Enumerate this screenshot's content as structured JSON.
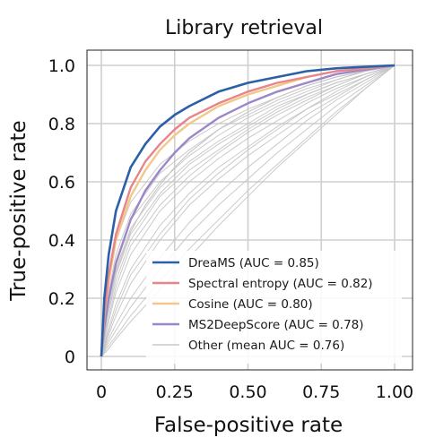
{
  "chart_data": {
    "type": "line",
    "title": "Library retrieval",
    "xlabel": "False-positive rate",
    "ylabel": "True-positive rate",
    "xlim": [
      0,
      1
    ],
    "ylim": [
      0,
      1
    ],
    "x_ticks": [
      "0",
      "0.25",
      "0.50",
      "0.75",
      "1.00"
    ],
    "y_ticks": [
      "0",
      "0.2",
      "0.4",
      "0.6",
      "0.8",
      "1.0"
    ],
    "grid": true,
    "legend_position": "bottom-right",
    "series": [
      {
        "name": "DreaMS (AUC = 0.85)",
        "color": "#2b5fa8",
        "x": [
          0,
          0.01,
          0.025,
          0.05,
          0.1,
          0.15,
          0.2,
          0.25,
          0.3,
          0.4,
          0.5,
          0.6,
          0.7,
          0.8,
          0.9,
          1.0
        ],
        "y": [
          0,
          0.2,
          0.35,
          0.5,
          0.65,
          0.73,
          0.79,
          0.83,
          0.86,
          0.91,
          0.94,
          0.96,
          0.98,
          0.99,
          0.995,
          1.0
        ]
      },
      {
        "name": "Spectral entropy (AUC = 0.82)",
        "color": "#e6868a",
        "x": [
          0,
          0.01,
          0.025,
          0.05,
          0.1,
          0.15,
          0.2,
          0.25,
          0.3,
          0.4,
          0.5,
          0.6,
          0.7,
          0.8,
          0.9,
          1.0
        ],
        "y": [
          0,
          0.15,
          0.28,
          0.42,
          0.58,
          0.67,
          0.73,
          0.78,
          0.82,
          0.87,
          0.91,
          0.94,
          0.96,
          0.98,
          0.99,
          1.0
        ]
      },
      {
        "name": "Cosine (AUC = 0.80)",
        "color": "#f2c88a",
        "x": [
          0,
          0.01,
          0.025,
          0.05,
          0.1,
          0.15,
          0.2,
          0.25,
          0.3,
          0.4,
          0.5,
          0.6,
          0.7,
          0.8,
          0.9,
          1.0
        ],
        "y": [
          0,
          0.14,
          0.26,
          0.4,
          0.55,
          0.64,
          0.71,
          0.76,
          0.8,
          0.86,
          0.9,
          0.93,
          0.96,
          0.98,
          0.99,
          1.0
        ]
      },
      {
        "name": "MS2DeepScore (AUC = 0.78)",
        "color": "#9b87c7",
        "x": [
          0,
          0.01,
          0.025,
          0.05,
          0.1,
          0.15,
          0.2,
          0.25,
          0.3,
          0.4,
          0.5,
          0.6,
          0.7,
          0.8,
          0.9,
          1.0
        ],
        "y": [
          0,
          0.1,
          0.2,
          0.32,
          0.47,
          0.57,
          0.64,
          0.7,
          0.75,
          0.82,
          0.87,
          0.91,
          0.94,
          0.97,
          0.985,
          1.0
        ]
      },
      {
        "name": "Other (mean AUC = 0.76)",
        "color": "#c8c8c8",
        "x": [
          0,
          0.01,
          0.025,
          0.05,
          0.1,
          0.15,
          0.2,
          0.25,
          0.3,
          0.4,
          0.5,
          0.6,
          0.7,
          0.8,
          0.9,
          1.0
        ],
        "y": [
          0,
          0.1,
          0.18,
          0.29,
          0.43,
          0.52,
          0.59,
          0.65,
          0.7,
          0.78,
          0.84,
          0.89,
          0.93,
          0.96,
          0.98,
          1.0
        ]
      }
    ],
    "other_curves": [
      {
        "x": [
          0,
          0.02,
          0.05,
          0.1,
          0.2,
          0.3,
          0.4,
          0.5,
          0.6,
          0.7,
          0.8,
          0.9,
          1.0
        ],
        "y": [
          0,
          0.25,
          0.4,
          0.53,
          0.66,
          0.74,
          0.8,
          0.85,
          0.89,
          0.93,
          0.96,
          0.98,
          1.0
        ]
      },
      {
        "x": [
          0,
          0.02,
          0.05,
          0.1,
          0.2,
          0.3,
          0.4,
          0.5,
          0.6,
          0.7,
          0.8,
          0.9,
          1.0
        ],
        "y": [
          0,
          0.2,
          0.35,
          0.49,
          0.63,
          0.71,
          0.78,
          0.83,
          0.88,
          0.92,
          0.95,
          0.98,
          1.0
        ]
      },
      {
        "x": [
          0,
          0.02,
          0.05,
          0.1,
          0.2,
          0.3,
          0.4,
          0.5,
          0.6,
          0.7,
          0.8,
          0.9,
          1.0
        ],
        "y": [
          0,
          0.16,
          0.3,
          0.44,
          0.58,
          0.67,
          0.74,
          0.8,
          0.86,
          0.9,
          0.94,
          0.97,
          1.0
        ]
      },
      {
        "x": [
          0,
          0.02,
          0.05,
          0.1,
          0.2,
          0.3,
          0.4,
          0.5,
          0.6,
          0.7,
          0.8,
          0.9,
          1.0
        ],
        "y": [
          0,
          0.13,
          0.26,
          0.4,
          0.55,
          0.64,
          0.71,
          0.78,
          0.84,
          0.89,
          0.93,
          0.97,
          1.0
        ]
      },
      {
        "x": [
          0,
          0.02,
          0.05,
          0.1,
          0.2,
          0.3,
          0.4,
          0.5,
          0.6,
          0.7,
          0.8,
          0.9,
          1.0
        ],
        "y": [
          0,
          0.1,
          0.22,
          0.35,
          0.5,
          0.6,
          0.68,
          0.75,
          0.81,
          0.87,
          0.92,
          0.96,
          1.0
        ]
      },
      {
        "x": [
          0,
          0.02,
          0.05,
          0.1,
          0.2,
          0.3,
          0.4,
          0.5,
          0.6,
          0.7,
          0.8,
          0.9,
          1.0
        ],
        "y": [
          0,
          0.08,
          0.18,
          0.3,
          0.45,
          0.56,
          0.65,
          0.72,
          0.79,
          0.85,
          0.91,
          0.96,
          1.0
        ]
      },
      {
        "x": [
          0,
          0.02,
          0.05,
          0.1,
          0.2,
          0.3,
          0.4,
          0.5,
          0.6,
          0.7,
          0.8,
          0.9,
          1.0
        ],
        "y": [
          0,
          0.06,
          0.14,
          0.25,
          0.4,
          0.52,
          0.61,
          0.69,
          0.76,
          0.83,
          0.89,
          0.95,
          1.0
        ]
      },
      {
        "x": [
          0,
          0.02,
          0.05,
          0.1,
          0.2,
          0.3,
          0.4,
          0.5,
          0.6,
          0.7,
          0.8,
          0.9,
          1.0
        ],
        "y": [
          0,
          0.05,
          0.11,
          0.2,
          0.34,
          0.46,
          0.56,
          0.65,
          0.73,
          0.81,
          0.88,
          0.94,
          1.0
        ]
      },
      {
        "x": [
          0,
          0.02,
          0.05,
          0.1,
          0.2,
          0.3,
          0.4,
          0.5,
          0.6,
          0.7,
          0.8,
          0.9,
          1.0
        ],
        "y": [
          0,
          0.04,
          0.09,
          0.17,
          0.3,
          0.42,
          0.52,
          0.61,
          0.7,
          0.78,
          0.86,
          0.93,
          1.0
        ]
      },
      {
        "x": [
          0,
          0.02,
          0.05,
          0.1,
          0.2,
          0.3,
          0.4,
          0.5,
          0.6,
          0.7,
          0.8,
          0.9,
          1.0
        ],
        "y": [
          0,
          0.03,
          0.07,
          0.14,
          0.26,
          0.37,
          0.47,
          0.57,
          0.66,
          0.75,
          0.84,
          0.92,
          1.0
        ]
      },
      {
        "x": [
          0,
          0.02,
          0.05,
          0.1,
          0.2,
          0.3,
          0.4,
          0.5,
          0.6,
          0.7,
          0.8,
          0.9,
          1.0
        ],
        "y": [
          0,
          0.18,
          0.33,
          0.47,
          0.6,
          0.69,
          0.76,
          0.82,
          0.87,
          0.91,
          0.95,
          0.98,
          1.0
        ]
      },
      {
        "x": [
          0,
          0.02,
          0.05,
          0.1,
          0.2,
          0.3,
          0.4,
          0.5,
          0.6,
          0.7,
          0.8,
          0.9,
          1.0
        ],
        "y": [
          0,
          0.11,
          0.24,
          0.38,
          0.52,
          0.62,
          0.7,
          0.77,
          0.83,
          0.88,
          0.93,
          0.97,
          1.0
        ]
      },
      {
        "x": [
          0,
          0.02,
          0.05,
          0.1,
          0.2,
          0.3,
          0.4,
          0.5,
          0.6,
          0.7,
          0.8,
          0.9,
          1.0
        ],
        "y": [
          0,
          0.07,
          0.16,
          0.28,
          0.42,
          0.54,
          0.63,
          0.71,
          0.78,
          0.85,
          0.9,
          0.95,
          1.0
        ]
      },
      {
        "x": [
          0,
          0.02,
          0.05,
          0.1,
          0.2,
          0.3,
          0.4,
          0.5,
          0.6,
          0.7,
          0.8,
          0.9,
          1.0
        ],
        "y": [
          0,
          0.02,
          0.06,
          0.12,
          0.23,
          0.34,
          0.45,
          0.55,
          0.65,
          0.74,
          0.83,
          0.92,
          1.0
        ]
      },
      {
        "x": [
          0,
          0.02,
          0.05,
          0.1,
          0.2,
          0.3,
          0.4,
          0.5,
          0.6,
          0.7,
          0.8,
          0.9,
          1.0
        ],
        "y": [
          0,
          0.14,
          0.28,
          0.42,
          0.56,
          0.66,
          0.73,
          0.79,
          0.85,
          0.9,
          0.94,
          0.97,
          1.0
        ]
      }
    ]
  }
}
